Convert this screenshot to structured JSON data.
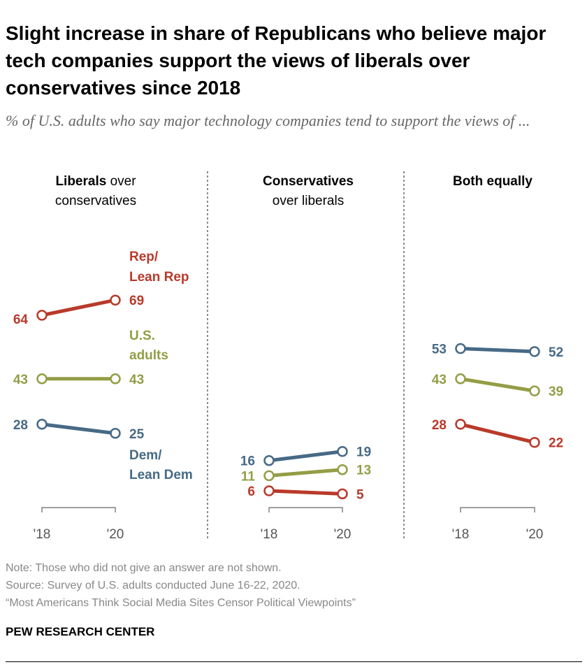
{
  "title": "Slight increase in share of Republicans who believe major tech companies support the views of liberals over conservatives since 2018",
  "subtitle": "% of U.S. adults who say major technology companies tend to support the views of ...",
  "colors": {
    "rep": "#b83a2b",
    "total": "#939d45",
    "dem": "#466a86",
    "axis": "#555555"
  },
  "chart_data": [
    {
      "type": "line",
      "title_bold": "Liberals",
      "title_rest": " over",
      "title_line2": "conservatives",
      "categories": [
        "'18",
        "'20"
      ],
      "series": [
        {
          "name": "Rep/ Lean Rep",
          "key": "rep",
          "values": [
            64,
            69
          ]
        },
        {
          "name": "U.S. adults",
          "key": "total",
          "values": [
            43,
            43
          ]
        },
        {
          "name": "Dem/ Lean Dem",
          "key": "dem",
          "values": [
            28,
            25
          ]
        }
      ]
    },
    {
      "type": "line",
      "title_bold": "Conservatives",
      "title_rest": "",
      "title_line2": "over liberals",
      "categories": [
        "'18",
        "'20"
      ],
      "series": [
        {
          "key": "dem",
          "values": [
            16,
            19
          ]
        },
        {
          "key": "total",
          "values": [
            11,
            13
          ]
        },
        {
          "key": "rep",
          "values": [
            6,
            5
          ]
        }
      ]
    },
    {
      "type": "line",
      "title_bold": "Both equally",
      "title_rest": "",
      "title_line2": "",
      "categories": [
        "'18",
        "'20"
      ],
      "series": [
        {
          "key": "dem",
          "values": [
            53,
            52
          ]
        },
        {
          "key": "total",
          "values": [
            43,
            39
          ]
        },
        {
          "key": "rep",
          "values": [
            28,
            22
          ]
        }
      ]
    }
  ],
  "series_labels": {
    "rep": [
      "Rep/",
      "Lean Rep"
    ],
    "total": [
      "U.S.",
      "adults"
    ],
    "dem": [
      "Dem/",
      "Lean Dem"
    ]
  },
  "footer": {
    "note": "Note: Those who did not give an answer are not shown.",
    "source": "Source: Survey of U.S. adults conducted June 16-22, 2020.",
    "report": "“Most Americans Think Social Media Sites Censor Political Viewpoints”",
    "brand": "PEW RESEARCH CENTER"
  }
}
